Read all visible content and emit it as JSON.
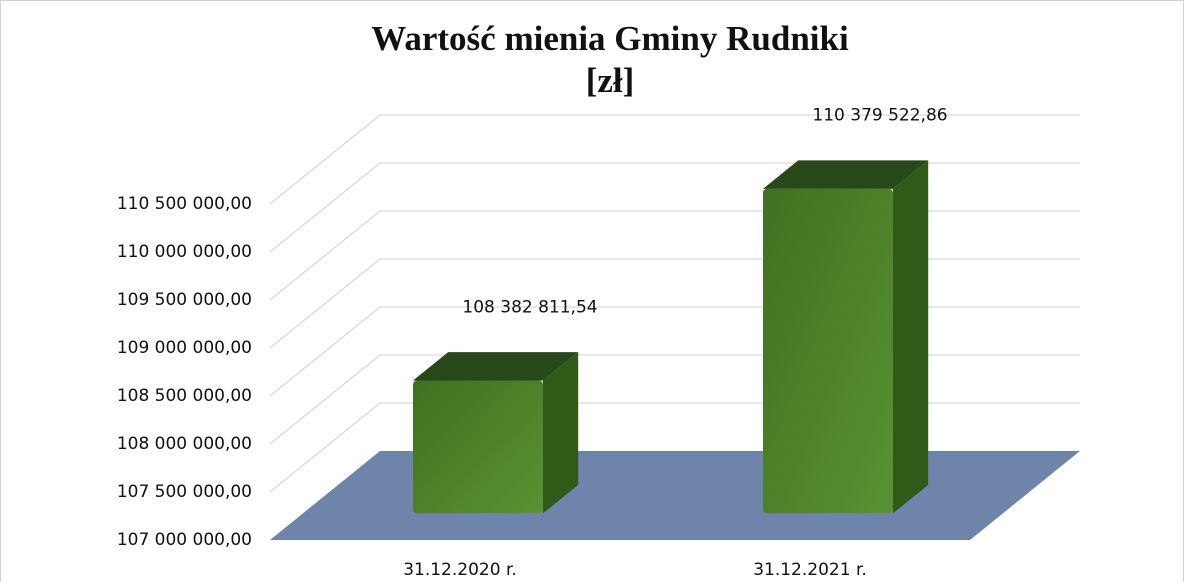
{
  "chart_data": {
    "type": "bar3d",
    "title": "Wartość mienia Gminy Rudniki",
    "subtitle": "[zł]",
    "categories": [
      "31.12.2020 r.",
      "31.12.2021 r."
    ],
    "values": [
      108382811.54,
      110379522.86
    ],
    "value_labels": [
      "108 382 811,54",
      "110 379 522,86"
    ],
    "color": "#4b7f2a",
    "floor_color": "#6f84ab",
    "ylim": [
      107000000,
      110500000
    ],
    "yticks": [
      {
        "value": 107000000,
        "label": "107 000 000,00"
      },
      {
        "value": 107500000,
        "label": "107 500 000,00"
      },
      {
        "value": 108000000,
        "label": "108 000 000,00"
      },
      {
        "value": 108500000,
        "label": "108 500 000,00"
      },
      {
        "value": 109000000,
        "label": "109 000 000,00"
      },
      {
        "value": 109500000,
        "label": "109 500 000,00"
      },
      {
        "value": 110000000,
        "label": "110 000 000,00"
      },
      {
        "value": 110500000,
        "label": "110 500 000,00"
      }
    ],
    "grid": true
  }
}
